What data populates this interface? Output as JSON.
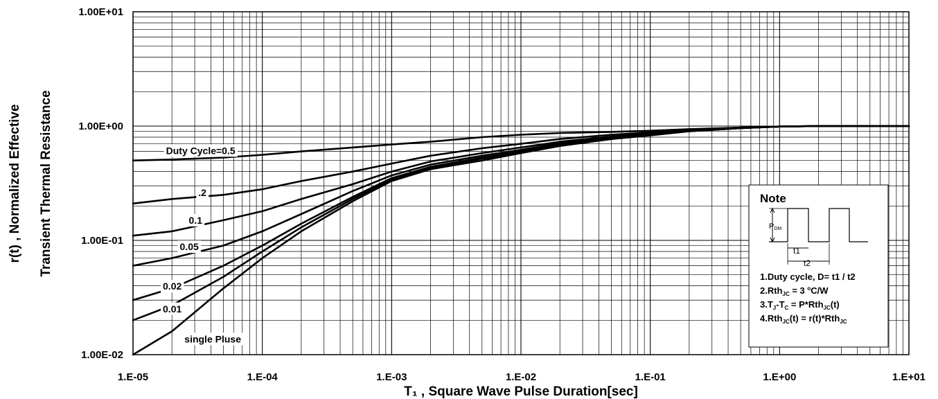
{
  "chart_data": {
    "type": "line",
    "title": "",
    "xlabel": "T₁ , Square Wave Pulse Duration[sec]",
    "ylabel_line1": "r(t) , Normalized Effective",
    "ylabel_line2": "Transient Thermal Resistance",
    "x_scale": "log",
    "y_scale": "log",
    "xlim": [
      1e-05,
      10
    ],
    "ylim": [
      0.01,
      10
    ],
    "grid": true,
    "x_ticks": [
      {
        "value": 1e-05,
        "label": "1.E-05"
      },
      {
        "value": 0.0001,
        "label": "1.E-04"
      },
      {
        "value": 0.001,
        "label": "1.E-03"
      },
      {
        "value": 0.01,
        "label": "1.E-02"
      },
      {
        "value": 0.1,
        "label": "1.E-01"
      },
      {
        "value": 1,
        "label": "1.E+00"
      },
      {
        "value": 10,
        "label": "1.E+01"
      }
    ],
    "y_ticks": [
      {
        "value": 10,
        "label": "1.00E+01"
      },
      {
        "value": 1,
        "label": "1.00E+00"
      },
      {
        "value": 0.1,
        "label": "1.00E-01"
      },
      {
        "value": 0.01,
        "label": "1.00E-02"
      }
    ],
    "x": [
      1e-05,
      2e-05,
      5e-05,
      0.0001,
      0.0002,
      0.0005,
      0.001,
      0.002,
      0.005,
      0.01,
      0.02,
      0.05,
      0.1,
      0.2,
      0.5,
      1,
      2,
      5,
      10
    ],
    "series": [
      {
        "name": "Duty Cycle=0.5",
        "values": [
          0.5,
          0.51,
          0.53,
          0.56,
          0.6,
          0.65,
          0.69,
          0.73,
          0.8,
          0.84,
          0.87,
          0.89,
          0.91,
          0.94,
          0.97,
          0.99,
          1.0,
          1.0,
          1.0
        ]
      },
      {
        "name": "0.2",
        "values": [
          0.21,
          0.23,
          0.25,
          0.28,
          0.33,
          0.4,
          0.47,
          0.55,
          0.64,
          0.7,
          0.77,
          0.84,
          0.88,
          0.92,
          0.97,
          0.99,
          1.0,
          1.0,
          1.0
        ]
      },
      {
        "name": "0.1",
        "values": [
          0.11,
          0.12,
          0.15,
          0.18,
          0.23,
          0.31,
          0.4,
          0.49,
          0.58,
          0.65,
          0.73,
          0.81,
          0.87,
          0.92,
          0.97,
          0.99,
          1.0,
          1.0,
          1.0
        ]
      },
      {
        "name": "0.05",
        "values": [
          0.06,
          0.07,
          0.09,
          0.12,
          0.17,
          0.27,
          0.37,
          0.46,
          0.55,
          0.62,
          0.71,
          0.79,
          0.85,
          0.91,
          0.96,
          0.99,
          1.0,
          1.0,
          1.0
        ]
      },
      {
        "name": "0.02",
        "values": [
          0.03,
          0.038,
          0.06,
          0.09,
          0.14,
          0.24,
          0.35,
          0.44,
          0.53,
          0.6,
          0.69,
          0.78,
          0.84,
          0.9,
          0.96,
          0.99,
          1.0,
          1.0,
          1.0
        ]
      },
      {
        "name": "0.01",
        "values": [
          0.02,
          0.027,
          0.048,
          0.08,
          0.13,
          0.23,
          0.34,
          0.43,
          0.52,
          0.59,
          0.68,
          0.77,
          0.84,
          0.9,
          0.96,
          0.99,
          1.0,
          1.0,
          1.0
        ]
      },
      {
        "name": "single Pluse",
        "values": [
          0.01,
          0.016,
          0.038,
          0.07,
          0.12,
          0.22,
          0.33,
          0.42,
          0.5,
          0.58,
          0.67,
          0.77,
          0.83,
          0.9,
          0.96,
          0.99,
          1.0,
          1.0,
          1.0
        ]
      }
    ],
    "curve_labels": [
      {
        "text": "Duty Cycle=0.5",
        "x": 1.8e-05,
        "y": 0.57
      },
      {
        "text": ".2",
        "x": 3.2e-05,
        "y": 0.245
      },
      {
        "text": "0.1",
        "x": 2.7e-05,
        "y": 0.14
      },
      {
        "text": "0.05",
        "x": 2.3e-05,
        "y": 0.082
      },
      {
        "text": "0.02",
        "x": 1.7e-05,
        "y": 0.037
      },
      {
        "text": "0.01",
        "x": 1.7e-05,
        "y": 0.0235
      },
      {
        "text": "single Pluse",
        "x": 2.5e-05,
        "y": 0.0128
      }
    ],
    "note": {
      "title": "Note",
      "pdm_label": "P",
      "pdm_sub": "DM",
      "t1_label": "t1",
      "t2_label": "t2",
      "line1": "1.Duty cycle, D= t1 / t2",
      "line2_a": "2.Rth",
      "line2_sub": "JC",
      "line2_b": " = 3 ",
      "line2_sup": "o",
      "line2_c": "C/W",
      "line3_a": "3.T",
      "line3_sub1": "J",
      "line3_b": "-T",
      "line3_sub2": "C",
      "line3_c": " = P*Rth",
      "line3_sub3": "JC",
      "line3_d": "(t)",
      "line4_a": "4.Rth",
      "line4_sub1": "JC",
      "line4_b": "(t) = r(t)*Rth",
      "line4_sub2": "JC"
    }
  }
}
